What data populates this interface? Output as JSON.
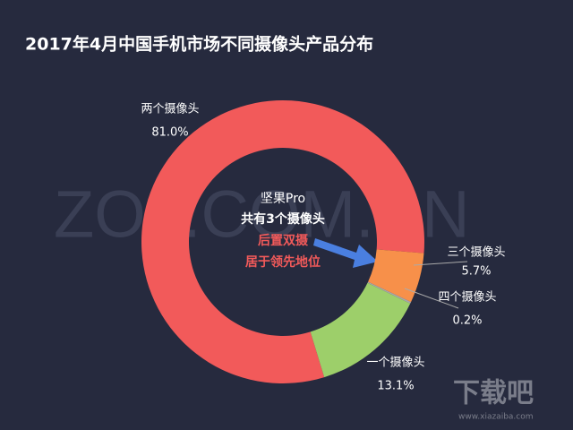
{
  "chart_data": {
    "type": "donut",
    "title": "2017年4月中国手机市场不同摄像头产品分布",
    "categories": [
      "两个摄像头",
      "三个摄像头",
      "四个摄像头",
      "一个摄像头"
    ],
    "values": [
      81.0,
      5.7,
      0.2,
      13.1
    ],
    "value_labels": [
      "81.0%",
      "5.7%",
      "0.2%",
      "13.1%"
    ],
    "colors": [
      "#f25a5a",
      "#f7904a",
      "#a8a8a8",
      "#9dcf6a"
    ],
    "annotations": [
      "坚果Pro",
      "共有3个摄像头",
      "后置双摄",
      "居于领先地位"
    ],
    "watermarks": [
      "ZOL.COM.CN",
      "下载吧",
      "www.xiazaiba.com"
    ]
  }
}
